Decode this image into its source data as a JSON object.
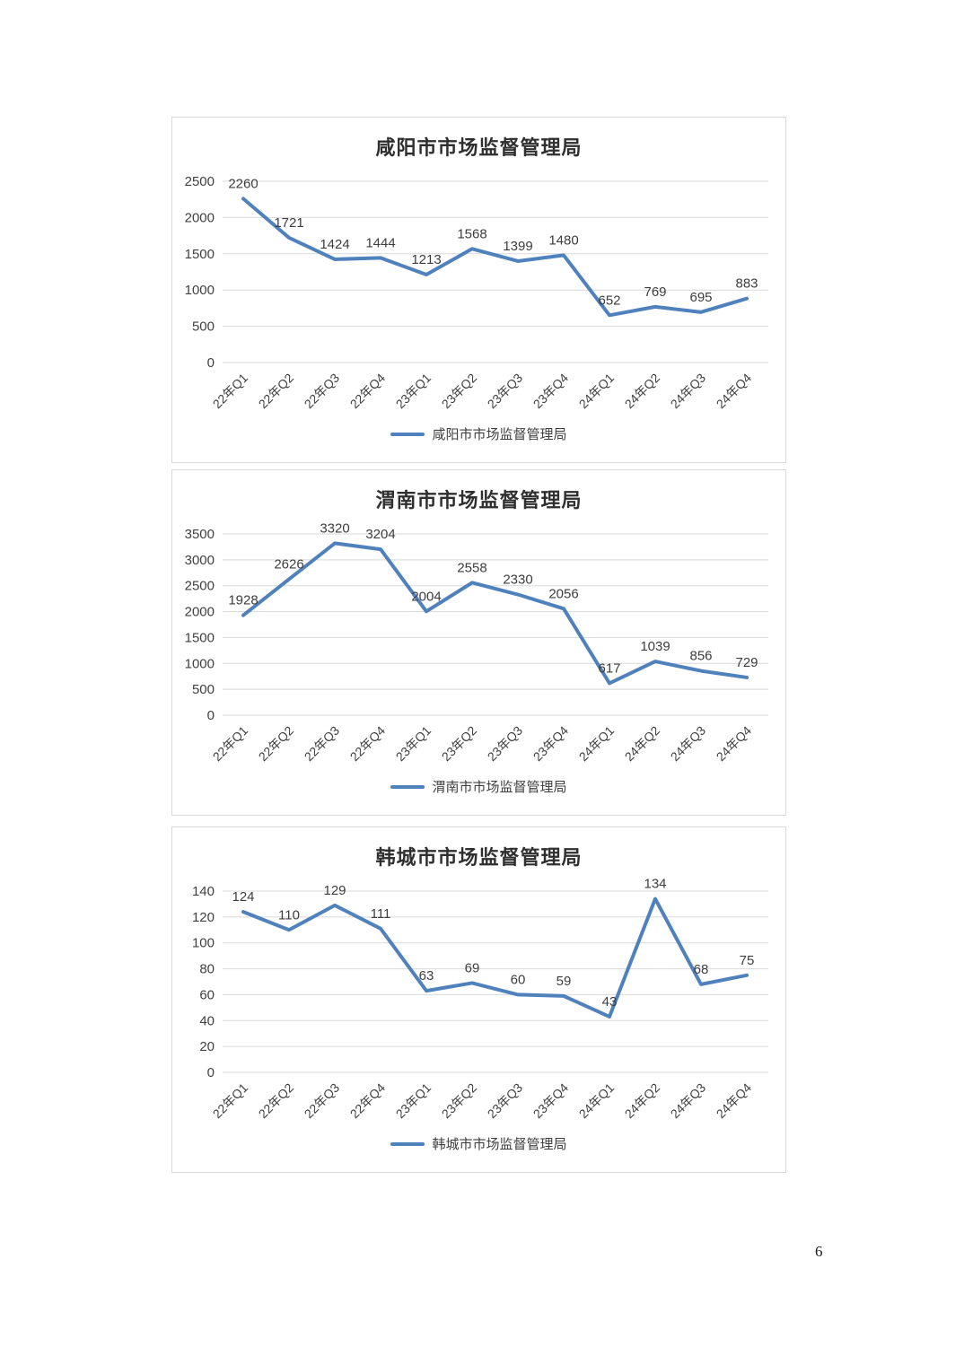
{
  "page": {
    "number": "6"
  },
  "styles": {
    "line_color": "#4f81bd",
    "grid_color": "#d9d9d9",
    "text_color": "#404040",
    "data_label_color": "#3d3d3d"
  },
  "chart_data": [
    {
      "type": "line",
      "title": "咸阳市市场监督管理局",
      "legend": "咸阳市市场监督管理局",
      "categories": [
        "22年Q1",
        "22年Q2",
        "22年Q3",
        "22年Q4",
        "23年Q1",
        "23年Q2",
        "23年Q3",
        "23年Q4",
        "24年Q1",
        "24年Q2",
        "24年Q3",
        "24年Q4"
      ],
      "values": [
        2260,
        1721,
        1424,
        1444,
        1213,
        1568,
        1399,
        1480,
        652,
        769,
        695,
        883
      ],
      "ylim": [
        0,
        2500
      ],
      "y_ticks": [
        0,
        500,
        1000,
        1500,
        2000,
        2500
      ],
      "grid": true,
      "legend_position": "bottom",
      "xlabel": "",
      "ylabel": ""
    },
    {
      "type": "line",
      "title": "渭南市市场监督管理局",
      "legend": "渭南市市场监督管理局",
      "categories": [
        "22年Q1",
        "22年Q2",
        "22年Q3",
        "22年Q4",
        "23年Q1",
        "23年Q2",
        "23年Q3",
        "23年Q4",
        "24年Q1",
        "24年Q2",
        "24年Q3",
        "24年Q4"
      ],
      "values": [
        1928,
        2626,
        3320,
        3204,
        2004,
        2558,
        2330,
        2056,
        617,
        1039,
        856,
        729
      ],
      "ylim": [
        0,
        3500
      ],
      "y_ticks": [
        0,
        500,
        1000,
        1500,
        2000,
        2500,
        3000,
        3500
      ],
      "grid": true,
      "legend_position": "bottom",
      "xlabel": "",
      "ylabel": ""
    },
    {
      "type": "line",
      "title": "韩城市市场监督管理局",
      "legend": "韩城市市场监督管理局",
      "categories": [
        "22年Q1",
        "22年Q2",
        "22年Q3",
        "22年Q4",
        "23年Q1",
        "23年Q2",
        "23年Q3",
        "23年Q4",
        "24年Q1",
        "24年Q2",
        "24年Q3",
        "24年Q4"
      ],
      "values": [
        124,
        110,
        129,
        111,
        63,
        69,
        60,
        59,
        43,
        134,
        68,
        75
      ],
      "ylim": [
        0,
        140
      ],
      "y_ticks": [
        0,
        20,
        40,
        60,
        80,
        100,
        120,
        140
      ],
      "grid": true,
      "legend_position": "bottom",
      "xlabel": "",
      "ylabel": ""
    }
  ]
}
